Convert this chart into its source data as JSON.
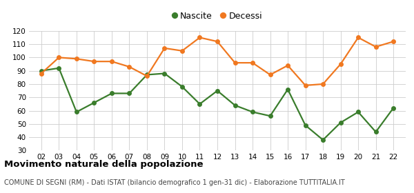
{
  "years": [
    2,
    3,
    4,
    5,
    6,
    7,
    8,
    9,
    10,
    11,
    12,
    13,
    14,
    15,
    16,
    17,
    18,
    19,
    20,
    21,
    22
  ],
  "nascite": [
    90,
    92,
    59,
    66,
    73,
    73,
    87,
    88,
    78,
    65,
    75,
    64,
    59,
    56,
    76,
    49,
    38,
    51,
    59,
    44,
    62
  ],
  "decessi": [
    88,
    100,
    99,
    97,
    97,
    93,
    86,
    107,
    105,
    115,
    112,
    96,
    96,
    87,
    94,
    79,
    80,
    95,
    115,
    108,
    112
  ],
  "nascite_color": "#3a7d2c",
  "decessi_color": "#f07820",
  "background_color": "#ffffff",
  "grid_color": "#cccccc",
  "ylim": [
    30,
    120
  ],
  "yticks": [
    30,
    40,
    50,
    60,
    70,
    80,
    90,
    100,
    110,
    120
  ],
  "title": "Movimento naturale della popolazione",
  "subtitle": "COMUNE DI SEGNI (RM) - Dati ISTAT (bilancio demografico 1 gen-31 dic) - Elaborazione TUTTITALIA.IT",
  "legend_nascite": "Nascite",
  "legend_decessi": "Decessi",
  "marker_size": 4,
  "line_width": 1.6
}
